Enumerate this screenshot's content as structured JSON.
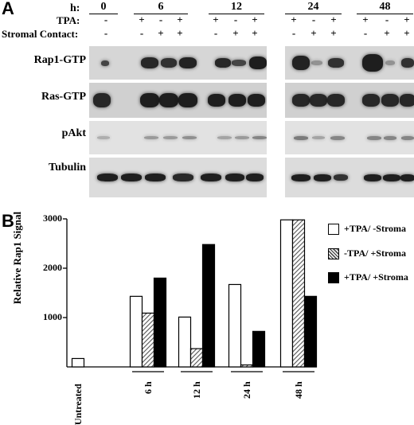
{
  "panel_a": {
    "letter": "A",
    "h_label": "h:",
    "tpa_label": "TPA:",
    "stromal_label": "Stromal Contact:",
    "time_groups": [
      {
        "label": "0",
        "tpa": [
          "-"
        ],
        "stromal": [
          "-"
        ]
      },
      {
        "label": "6",
        "tpa": [
          "+",
          "-",
          "+"
        ],
        "stromal": [
          "-",
          "+",
          "+"
        ]
      },
      {
        "label": "12",
        "tpa": [
          "+",
          "-",
          "+"
        ],
        "stromal": [
          "-",
          "+",
          "+"
        ]
      },
      {
        "label": "24",
        "tpa": [
          "+",
          "-",
          "+"
        ],
        "stromal": [
          "-",
          "+",
          "+"
        ]
      },
      {
        "label": "48",
        "tpa": [
          "+",
          "-",
          "+"
        ],
        "stromal": [
          "-",
          "+",
          "+"
        ]
      }
    ],
    "blot_rows": [
      "Rap1-GTP",
      "Ras-GTP",
      "pAkt",
      "Tubulin"
    ]
  },
  "panel_b": {
    "letter": "B"
  },
  "chart_data": {
    "type": "bar",
    "ylabel": "Relative Rap1 Signal",
    "xlabel": "",
    "ylim": [
      0,
      3000
    ],
    "yticks": [
      "1000",
      "2000",
      "3000"
    ],
    "categories": [
      "Untreated",
      "6 h",
      "12 h",
      "24 h",
      "48 h"
    ],
    "series": [
      {
        "name": "+TPA/ -Stroma",
        "fill": "#ffffff",
        "values": [
          170,
          1430,
          1010,
          1670,
          2980
        ]
      },
      {
        "name": "-TPA/ +Stroma",
        "fill": "hatched",
        "values": [
          null,
          1090,
          370,
          40,
          2980
        ]
      },
      {
        "name": "+TPA/ +Stroma",
        "fill": "#000000",
        "values": [
          null,
          1800,
          2480,
          720,
          1430
        ]
      }
    ],
    "legend_position": "right"
  }
}
